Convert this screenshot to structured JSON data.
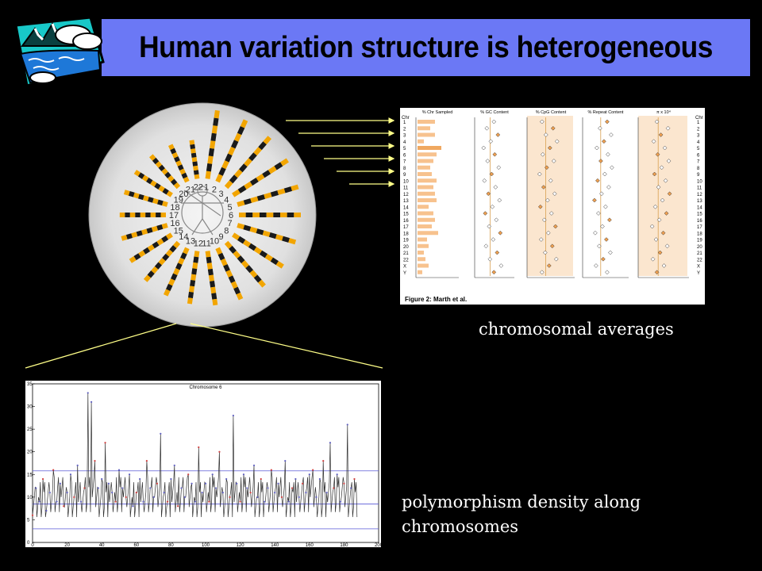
{
  "slide": {
    "title": "Human variation structure is heterogeneous",
    "caption_top": "chromosomal averages",
    "caption_bottom": "polymorphism density along chromosomes"
  },
  "colors": {
    "title_bg": "#6b78f5",
    "arrow": "#ffff88",
    "chromosome_band": "#f2a500",
    "figure_bar": "#f7c28e",
    "shade": "#fbe6cf"
  },
  "karyogram": {
    "ring_labels": [
      "1",
      "2",
      "3",
      "4",
      "5",
      "6",
      "7",
      "8",
      "9",
      "10",
      "11",
      "12",
      "13",
      "14",
      "15",
      "16",
      "17",
      "18",
      "19",
      "20",
      "21",
      "22"
    ]
  },
  "figure2": {
    "caption": "Figure 2: Marth et al.",
    "row_header": "Chr",
    "rows": [
      "1",
      "2",
      "3",
      "4",
      "5",
      "6",
      "7",
      "8",
      "9",
      "10",
      "11",
      "12",
      "13",
      "14",
      "15",
      "16",
      "17",
      "18",
      "19",
      "20",
      "21",
      "22",
      "X",
      "Y"
    ],
    "panels": [
      "% Chr Sampled",
      "% GC Content",
      "% CpG Content",
      "% Repeat Content",
      "π x 10⁴"
    ]
  },
  "density_chart": {
    "title": "Chromosome 6",
    "y_ticks": [
      "35",
      "30",
      "25",
      "20",
      "15",
      "10",
      "5",
      "0"
    ],
    "x_ticks": [
      "0",
      "20",
      "40",
      "60",
      "80",
      "100",
      "120",
      "140",
      "160",
      "180",
      "200"
    ]
  },
  "chart_data": {
    "type": "line",
    "title": "Chromosome 6",
    "xlabel": "",
    "ylabel": "",
    "xlim": [
      0,
      200
    ],
    "ylim": [
      0,
      35
    ],
    "reference_lines": [
      15.8,
      8.5,
      3.0
    ],
    "x": [
      0,
      2,
      4,
      6,
      8,
      10,
      12,
      14,
      16,
      18,
      20,
      22,
      24,
      26,
      28,
      30,
      32,
      34,
      36,
      38,
      40,
      42,
      44,
      46,
      48,
      50,
      52,
      54,
      56,
      58,
      60,
      62,
      64,
      66,
      68,
      70,
      72,
      74,
      76,
      78,
      80,
      82,
      84,
      86,
      88,
      90,
      92,
      94,
      96,
      98,
      100,
      102,
      104,
      106,
      108,
      110,
      112,
      114,
      116,
      118,
      120,
      122,
      124,
      126,
      128,
      130,
      132,
      134,
      136,
      138,
      140,
      142,
      144,
      146,
      148,
      150,
      152,
      154,
      156,
      158,
      160,
      162,
      164,
      166,
      168,
      170,
      172,
      174,
      176,
      178,
      180,
      182,
      184,
      186
    ],
    "series": [
      {
        "values": [
          6,
          12,
          9,
          14,
          7,
          11,
          16,
          9,
          13,
          8,
          11,
          15,
          10,
          17,
          9,
          12,
          33,
          31,
          18,
          12,
          14,
          22,
          13,
          11,
          9,
          16,
          12,
          10,
          15,
          8,
          11,
          14,
          9,
          18,
          12,
          10,
          13,
          24,
          11,
          9,
          14,
          17,
          8,
          12,
          10,
          15,
          13,
          9,
          21,
          11,
          13,
          9,
          15,
          12,
          20,
          11,
          14,
          10,
          28,
          13,
          9,
          15,
          12,
          11,
          17,
          10,
          14,
          9,
          12,
          16,
          11,
          13,
          10,
          18,
          9,
          12,
          14,
          10,
          13,
          11,
          15,
          16,
          10,
          14,
          18,
          11,
          22,
          12,
          15,
          9,
          13,
          26,
          12,
          14
        ]
      }
    ]
  }
}
